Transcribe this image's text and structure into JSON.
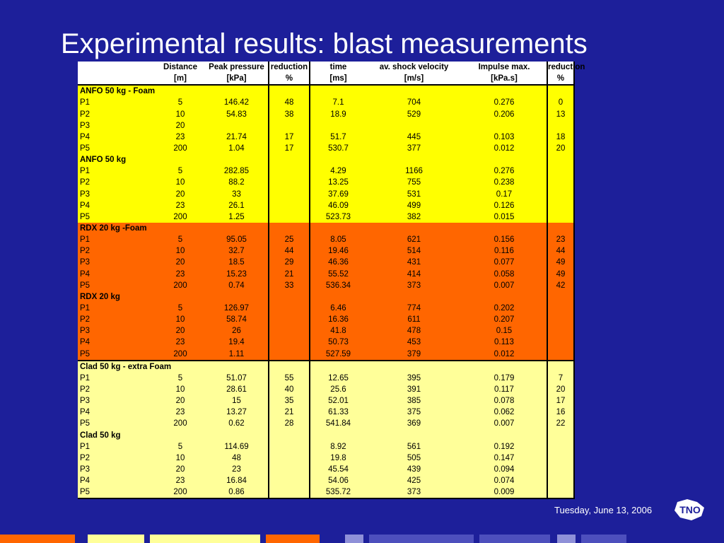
{
  "title": "Experimental results: blast measurements",
  "header": {
    "row1": [
      "",
      "Distance",
      "Peak pressure",
      "reduction",
      "time",
      "av. shock velocity",
      "Impulse max.",
      "reduction"
    ],
    "row2": [
      "",
      "[m]",
      "[kPa]",
      "%",
      "[ms]",
      "[m/s]",
      "[kPa.s]",
      "%"
    ]
  },
  "groups": [
    {
      "label": "ANFO 50 kg - Foam",
      "color": "yellow",
      "rows": [
        [
          "P1",
          "5",
          "146.42",
          "48",
          "7.1",
          "704",
          "0.276",
          "0"
        ],
        [
          "P2",
          "10",
          "54.83",
          "38",
          "18.9",
          "529",
          "0.206",
          "13"
        ],
        [
          "P3",
          "20",
          "",
          "",
          "",
          "",
          "",
          ""
        ],
        [
          "P4",
          "23",
          "21.74",
          "17",
          "51.7",
          "445",
          "0.103",
          "18"
        ],
        [
          "P5",
          "200",
          "1.04",
          "17",
          "530.7",
          "377",
          "0.012",
          "20"
        ]
      ]
    },
    {
      "label": "ANFO 50 kg",
      "color": "yellow",
      "rows": [
        [
          "P1",
          "5",
          "282.85",
          "",
          "4.29",
          "1166",
          "0.276",
          ""
        ],
        [
          "P2",
          "10",
          "88.2",
          "",
          "13.25",
          "755",
          "0.238",
          ""
        ],
        [
          "P3",
          "20",
          "33",
          "",
          "37.69",
          "531",
          "0.17",
          ""
        ],
        [
          "P4",
          "23",
          "26.1",
          "",
          "46.09",
          "499",
          "0.126",
          ""
        ],
        [
          "P5",
          "200",
          "1.25",
          "",
          "523.73",
          "382",
          "0.015",
          ""
        ]
      ]
    },
    {
      "label": "RDX 20 kg -Foam",
      "color": "orange",
      "rows": [
        [
          "P1",
          "5",
          "95.05",
          "25",
          "8.05",
          "621",
          "0.156",
          "23"
        ],
        [
          "P2",
          "10",
          "32.7",
          "44",
          "19.46",
          "514",
          "0.116",
          "44"
        ],
        [
          "P3",
          "20",
          "18.5",
          "29",
          "46.36",
          "431",
          "0.077",
          "49"
        ],
        [
          "P4",
          "23",
          "15.23",
          "21",
          "55.52",
          "414",
          "0.058",
          "49"
        ],
        [
          "P5",
          "200",
          "0.74",
          "33",
          "536.34",
          "373",
          "0.007",
          "42"
        ]
      ]
    },
    {
      "label": "RDX 20 kg",
      "color": "orange",
      "rows": [
        [
          "P1",
          "5",
          "126.97",
          "",
          "6.46",
          "774",
          "0.202",
          ""
        ],
        [
          "P2",
          "10",
          "58.74",
          "",
          "16.36",
          "611",
          "0.207",
          ""
        ],
        [
          "P3",
          "20",
          "26",
          "",
          "41.8",
          "478",
          "0.15",
          ""
        ],
        [
          "P4",
          "23",
          "19.4",
          "",
          "50.73",
          "453",
          "0.113",
          ""
        ],
        [
          "P5",
          "200",
          "1.11",
          "",
          "527.59",
          "379",
          "0.012",
          ""
        ]
      ]
    },
    {
      "label": "Clad 50 kg - extra Foam",
      "color": "pale",
      "rows": [
        [
          "P1",
          "5",
          "51.07",
          "55",
          "12.65",
          "395",
          "0.179",
          "7"
        ],
        [
          "P2",
          "10",
          "28.61",
          "40",
          "25.6",
          "391",
          "0.117",
          "20"
        ],
        [
          "P3",
          "20",
          "15",
          "35",
          "52.01",
          "385",
          "0.078",
          "17"
        ],
        [
          "P4",
          "23",
          "13.27",
          "21",
          "61.33",
          "375",
          "0.062",
          "16"
        ],
        [
          "P5",
          "200",
          "0.62",
          "28",
          "541.84",
          "369",
          "0.007",
          "22"
        ]
      ]
    },
    {
      "label": "Clad 50 kg",
      "color": "pale",
      "rows": [
        [
          "P1",
          "5",
          "114.69",
          "",
          "8.92",
          "561",
          "0.192",
          ""
        ],
        [
          "P2",
          "10",
          "48",
          "",
          "19.8",
          "505",
          "0.147",
          ""
        ],
        [
          "P3",
          "20",
          "23",
          "",
          "45.54",
          "439",
          "0.094",
          ""
        ],
        [
          "P4",
          "23",
          "16.84",
          "",
          "54.06",
          "425",
          "0.074",
          ""
        ],
        [
          "P5",
          "200",
          "0.86",
          "",
          "535.72",
          "373",
          "0.009",
          ""
        ]
      ]
    }
  ],
  "footer": {
    "date": "Tuesday, June 13, 2006",
    "logo_text": "TNO"
  },
  "colors": {
    "background": "#1d1f9a",
    "yellow": "#ffff00",
    "orange": "#ff6600",
    "pale": "#ffff99"
  }
}
